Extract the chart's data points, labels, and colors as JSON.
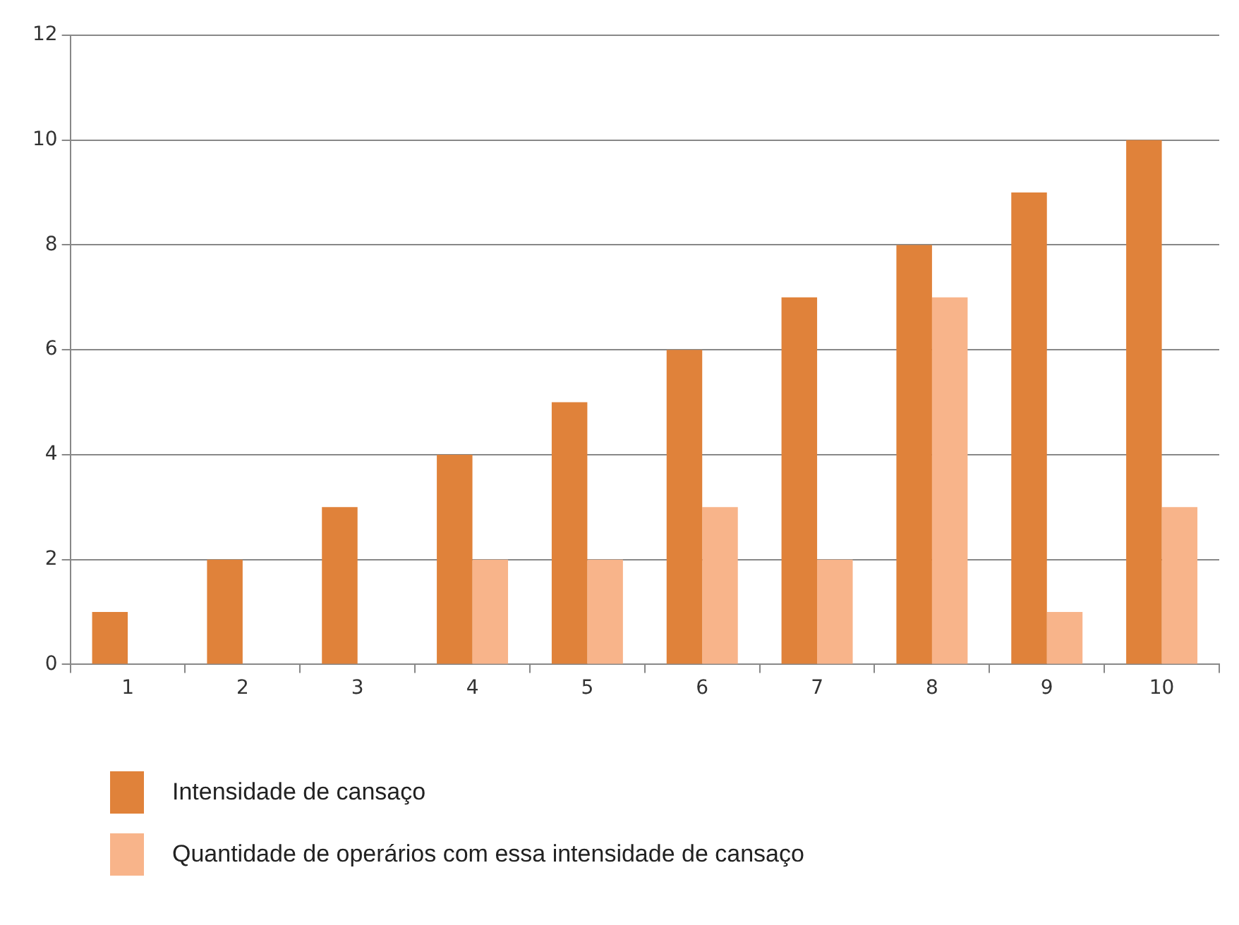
{
  "chart_data": {
    "type": "bar",
    "categories": [
      "1",
      "2",
      "3",
      "4",
      "5",
      "6",
      "7",
      "8",
      "9",
      "10"
    ],
    "series": [
      {
        "name": "Intensidade de cansaço",
        "color": "#e0823a",
        "values": [
          1,
          2,
          3,
          4,
          5,
          6,
          7,
          8,
          9,
          10
        ]
      },
      {
        "name": "Quantidade de operários com essa intensidade de cansaço",
        "color": "#f8b48a",
        "values": [
          0,
          0,
          0,
          2,
          2,
          3,
          2,
          7,
          1,
          3
        ]
      }
    ],
    "ylim": [
      0,
      12
    ],
    "yticks": [
      0,
      2,
      4,
      6,
      8,
      10,
      12
    ],
    "grid": "y",
    "legend": "bottom"
  }
}
